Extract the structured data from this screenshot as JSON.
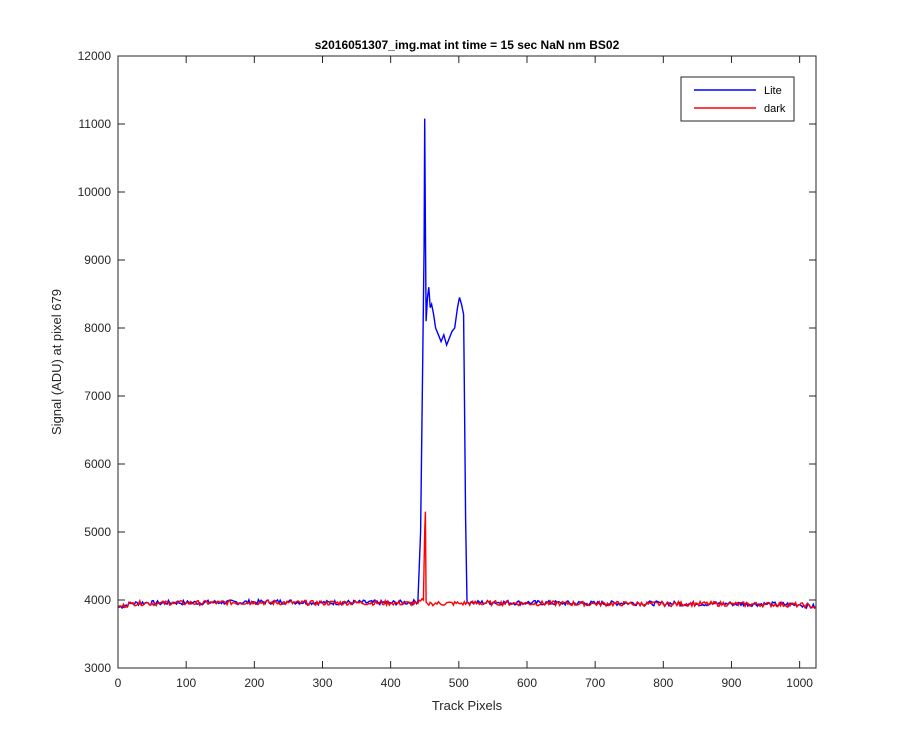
{
  "chart_data": {
    "type": "line",
    "title": "s2016051307_img.mat int time = 15 sec  NaN nm BS02",
    "xlabel": "Track Pixels",
    "ylabel": "Signal (ADU) at pixel 679",
    "xlim": [
      0,
      1024
    ],
    "ylim": [
      3000,
      12000
    ],
    "x_ticks": [
      0,
      100,
      200,
      300,
      400,
      500,
      600,
      700,
      800,
      900,
      1000
    ],
    "y_ticks": [
      3000,
      4000,
      5000,
      6000,
      7000,
      8000,
      9000,
      10000,
      11000,
      12000
    ],
    "grid": false,
    "legend_position": "top-right",
    "series": [
      {
        "name": "Lite",
        "color": "#0000ff",
        "x": [
          0,
          20,
          40,
          60,
          80,
          100,
          150,
          200,
          250,
          300,
          350,
          400,
          430,
          440,
          444,
          447,
          449,
          450,
          451,
          452,
          454,
          456,
          458,
          460,
          463,
          466,
          470,
          474,
          478,
          482,
          486,
          490,
          494,
          498,
          501,
          504,
          507,
          508,
          510,
          512,
          520,
          550,
          600,
          650,
          700,
          750,
          800,
          850,
          900,
          950,
          1000,
          1024
        ],
        "y": [
          3890,
          3950,
          3960,
          3955,
          3965,
          3960,
          3965,
          3970,
          3975,
          3960,
          3965,
          3960,
          3965,
          3980,
          5000,
          7500,
          9200,
          11080,
          9500,
          8100,
          8450,
          8600,
          8300,
          8350,
          8200,
          8000,
          7900,
          7800,
          7900,
          7750,
          7850,
          7950,
          8000,
          8300,
          8450,
          8350,
          8200,
          7200,
          5200,
          3970,
          3960,
          3965,
          3960,
          3955,
          3950,
          3955,
          3950,
          3945,
          3945,
          3940,
          3930,
          3900
        ]
      },
      {
        "name": "dark",
        "color": "#ff0000",
        "x": [
          0,
          20,
          40,
          60,
          80,
          100,
          150,
          200,
          250,
          300,
          350,
          400,
          440,
          448,
          450,
          451,
          452,
          454,
          460,
          500,
          550,
          600,
          650,
          700,
          750,
          800,
          850,
          900,
          950,
          1000,
          1024
        ],
        "y": [
          3890,
          3950,
          3955,
          3950,
          3960,
          3955,
          3960,
          3965,
          3960,
          3955,
          3960,
          3955,
          3950,
          4000,
          5000,
          5300,
          3970,
          3945,
          3950,
          3950,
          3955,
          3950,
          3950,
          3945,
          3945,
          3940,
          3945,
          3940,
          3935,
          3930,
          3895
        ]
      }
    ]
  }
}
